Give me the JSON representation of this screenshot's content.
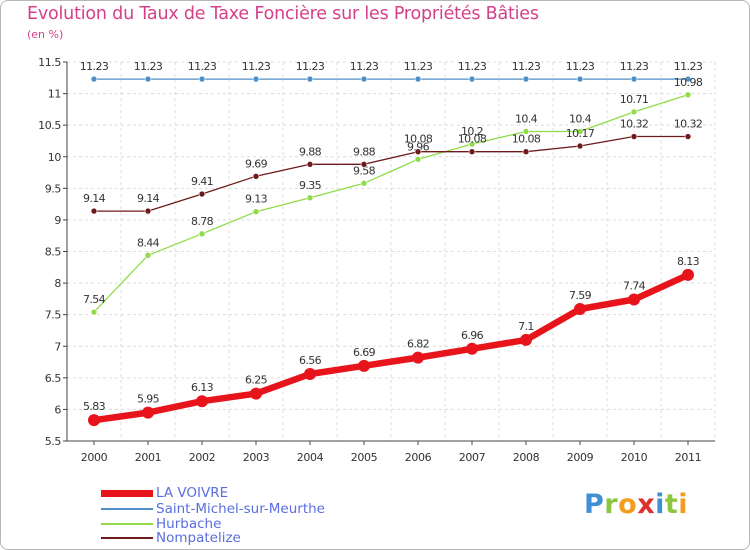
{
  "chart_data": {
    "type": "line",
    "title": "Evolution du Taux de Taxe Foncière sur les Propriétés Bâties",
    "ylabel": "(en %)",
    "xlabel": "",
    "ylim": [
      5.5,
      11.5
    ],
    "yticks": [
      "5.5",
      "6",
      "6.5",
      "7",
      "7.5",
      "8",
      "8.5",
      "9",
      "9.5",
      "10",
      "10.5",
      "11",
      "11.5"
    ],
    "grid": true,
    "legend_position": "bottom-left",
    "categories": [
      "2000",
      "2001",
      "2002",
      "2003",
      "2004",
      "2005",
      "2006",
      "2007",
      "2008",
      "2009",
      "2010",
      "2011"
    ],
    "series": [
      {
        "name": "Saint-Michel-sur-Meurthe",
        "color": "#4f8fc9",
        "values": [
          11.23,
          11.23,
          11.23,
          11.23,
          11.23,
          11.23,
          11.23,
          11.23,
          11.23,
          11.23,
          11.23,
          11.23
        ],
        "labels": [
          "11.23",
          "11.23",
          "11.23",
          "11.23",
          "11.23",
          "11.23",
          "11.23",
          "11.23",
          "11.23",
          "11.23",
          "11.23",
          "11.23"
        ]
      },
      {
        "name": "Hurbache",
        "color": "#8fdc48",
        "values": [
          7.54,
          8.44,
          8.78,
          9.13,
          9.35,
          9.58,
          9.96,
          10.2,
          10.4,
          10.4,
          10.71,
          10.98
        ],
        "labels": [
          "7.54",
          "8.44",
          "8.78",
          "9.13",
          "9.35",
          "9.58",
          "9.96",
          "10.2",
          "10.4",
          "10.4",
          "10.71",
          "10.98"
        ]
      },
      {
        "name": "Nompatelize",
        "color": "#6e1a1a",
        "values": [
          9.14,
          9.14,
          9.41,
          9.69,
          9.88,
          9.88,
          10.08,
          10.08,
          10.08,
          10.17,
          10.32,
          10.32
        ],
        "labels": [
          "9.14",
          "9.14",
          "9.41",
          "9.69",
          "9.88",
          "9.88",
          "10.08",
          "10.08",
          "10.08",
          "10.17",
          "10.32",
          "10.32"
        ]
      },
      {
        "name": "LA VOIVRE",
        "color": "#e8141b",
        "values": [
          5.83,
          5.95,
          6.13,
          6.25,
          6.56,
          6.69,
          6.82,
          6.96,
          7.1,
          7.59,
          7.74,
          8.13
        ],
        "labels": [
          "5.83",
          "5.95",
          "6.13",
          "6.25",
          "6.56",
          "6.69",
          "6.82",
          "6.96",
          "7.1",
          "7.59",
          "7.74",
          "8.13"
        ]
      }
    ]
  },
  "legend": [
    {
      "name": "LA VOIVRE",
      "color": "#e8141b"
    },
    {
      "name": "Saint-Michel-sur-Meurthe",
      "color": "#4f8fc9"
    },
    {
      "name": "Hurbache",
      "color": "#8fdc48"
    },
    {
      "name": "Nompatelize",
      "color": "#6e1a1a"
    }
  ],
  "logo": {
    "letters": [
      "P",
      "r",
      "o",
      "x",
      "i",
      "t",
      "i"
    ]
  }
}
